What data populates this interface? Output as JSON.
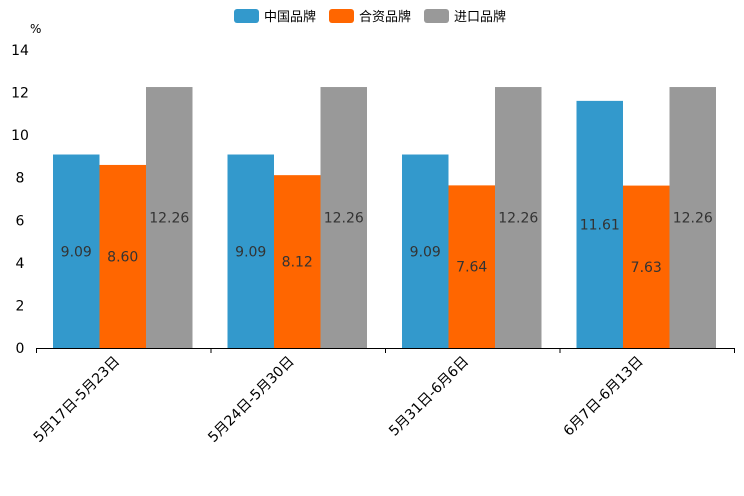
{
  "chart_data": {
    "type": "bar",
    "title": "",
    "xlabel": "",
    "ylabel": "%",
    "ylim": [
      0,
      14
    ],
    "yticks": [
      0,
      2,
      4,
      6,
      8,
      10,
      12,
      14
    ],
    "categories": [
      "5月17日-5月23日",
      "5月24日-5月30日",
      "5月31日-6月6日",
      "6月7日-6月13日"
    ],
    "series": [
      {
        "name": "中国品牌",
        "color": "#3399cc",
        "values": [
          9.09,
          9.09,
          9.09,
          11.61
        ],
        "labels": [
          "9.09",
          "9.09",
          "9.09",
          "11.61"
        ]
      },
      {
        "name": "合资品牌",
        "color": "#ff6600",
        "values": [
          8.6,
          8.12,
          7.64,
          7.63
        ],
        "labels": [
          "8.60",
          "8.12",
          "7.64",
          "7.63"
        ]
      },
      {
        "name": "进口品牌",
        "color": "#999999",
        "values": [
          12.26,
          12.26,
          12.26,
          12.26
        ],
        "labels": [
          "12.26",
          "12.26",
          "12.26",
          "12.26"
        ]
      }
    ],
    "legend_position": "top-center",
    "grid": false
  }
}
